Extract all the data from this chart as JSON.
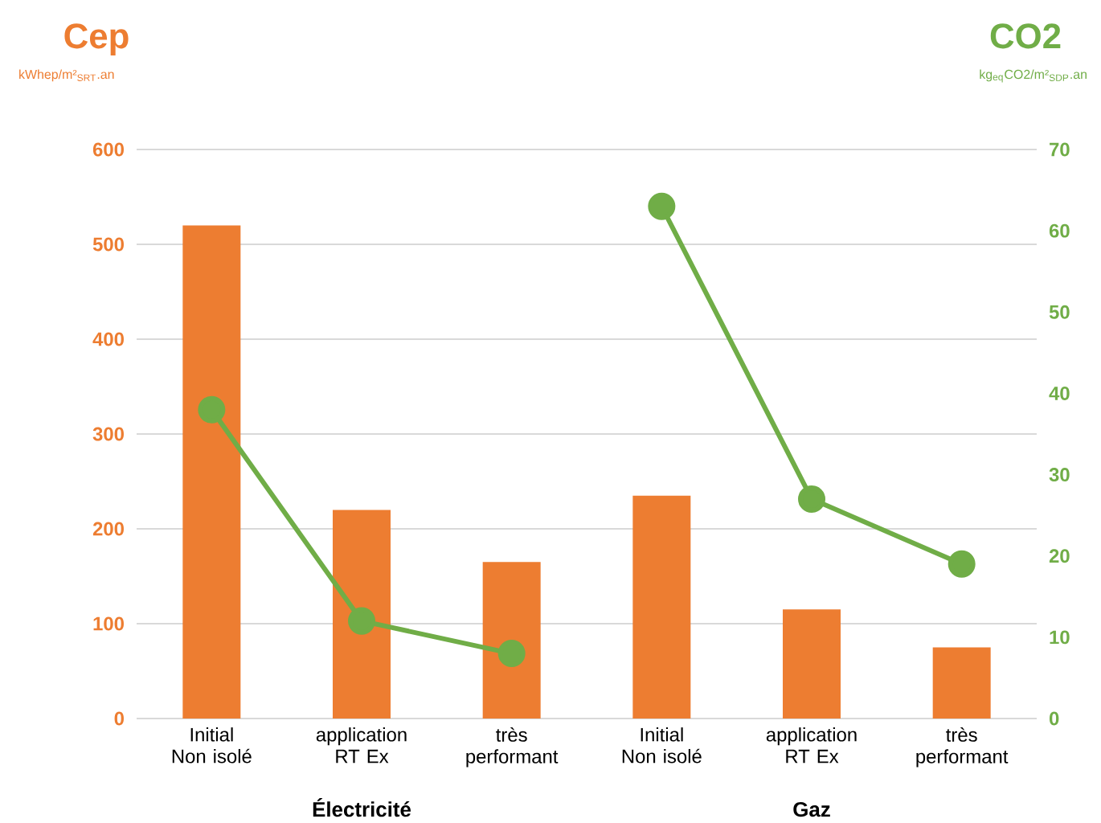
{
  "chart_data": {
    "type": "bar",
    "ylabel": "Cep",
    "y2label": "CO2",
    "annotations": [
      "kWhep/m²$_{SRT}$.an",
      "kg$_{eq}$CO2/m²$_{SDP}$.an",
      "Électricité",
      "Gaz"
    ],
    "categories": [
      "Initial Non isolé",
      "application RT Ex",
      "très performant",
      "Initial Non isolé",
      "application RT Ex",
      "très performant"
    ],
    "series": [
      {
        "color": "#ed7d31",
        "values": [
          520,
          220,
          165,
          235,
          115,
          75
        ]
      },
      {
        "type": "line",
        "axis": "y2",
        "color": "#70ad47",
        "marker": "circle",
        "values": [
          38,
          12,
          8,
          null,
          null,
          null
        ]
      },
      {
        "type": "line",
        "axis": "y2",
        "color": "#70ad47",
        "marker": "circle",
        "values": [
          null,
          null,
          null,
          63,
          27,
          19
        ]
      }
    ],
    "ylim": [
      0,
      600
    ],
    "yticks": [
      0,
      100,
      200,
      300,
      400,
      500,
      600
    ],
    "y2lim": [
      0,
      70
    ],
    "y2ticks": [
      0,
      10,
      20,
      30,
      40,
      50,
      60,
      70
    ],
    "grid": "y"
  }
}
